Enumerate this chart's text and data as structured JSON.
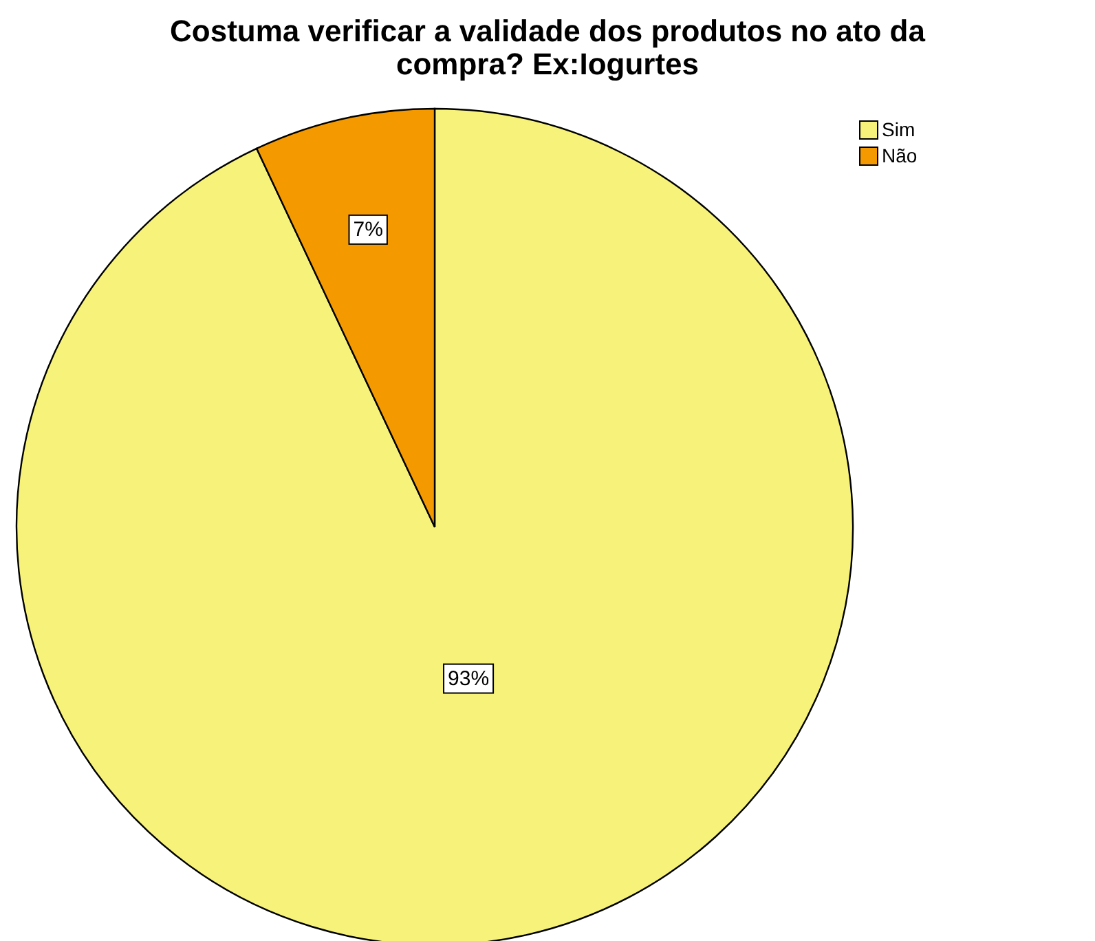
{
  "chart_data": {
    "type": "pie",
    "title": "Costuma verificar a validade dos produtos no ato da compra? Ex:Iogurtes",
    "categories": [
      "Sim",
      "Não"
    ],
    "values": [
      93,
      7
    ],
    "colors": [
      "#f7f37a",
      "#f49a00"
    ],
    "value_labels": [
      "93%",
      "7%"
    ],
    "legend": "top right"
  }
}
